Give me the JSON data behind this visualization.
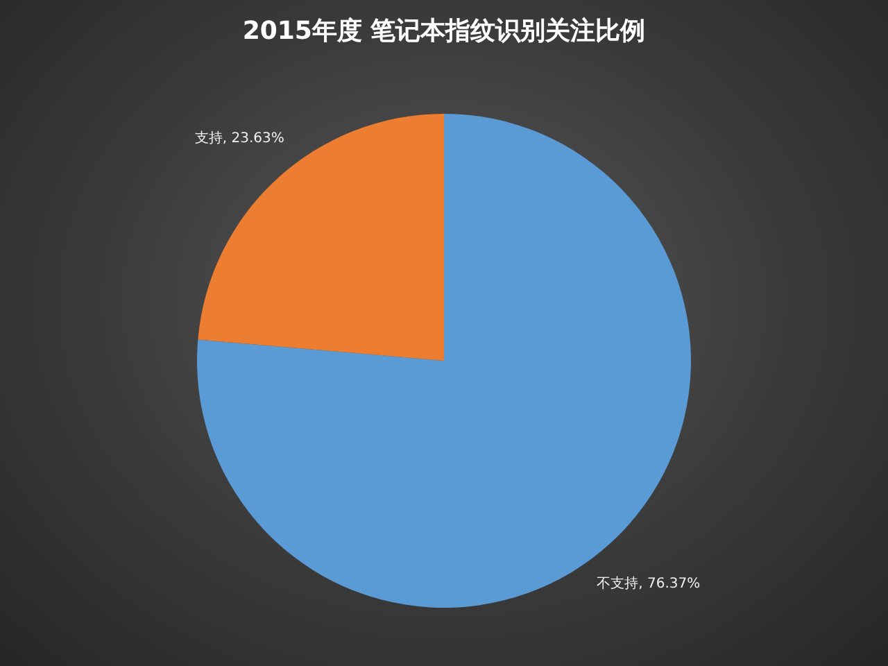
{
  "chart_data": {
    "type": "pie",
    "title": "2015年度 笔记本指纹识别关注比例",
    "categories": [
      "不支持",
      "支持"
    ],
    "values": [
      76.37,
      23.63
    ],
    "colors": [
      "#5b9bd5",
      "#ed7d31"
    ],
    "value_labels": [
      "76.37%",
      "23.63%"
    ]
  }
}
